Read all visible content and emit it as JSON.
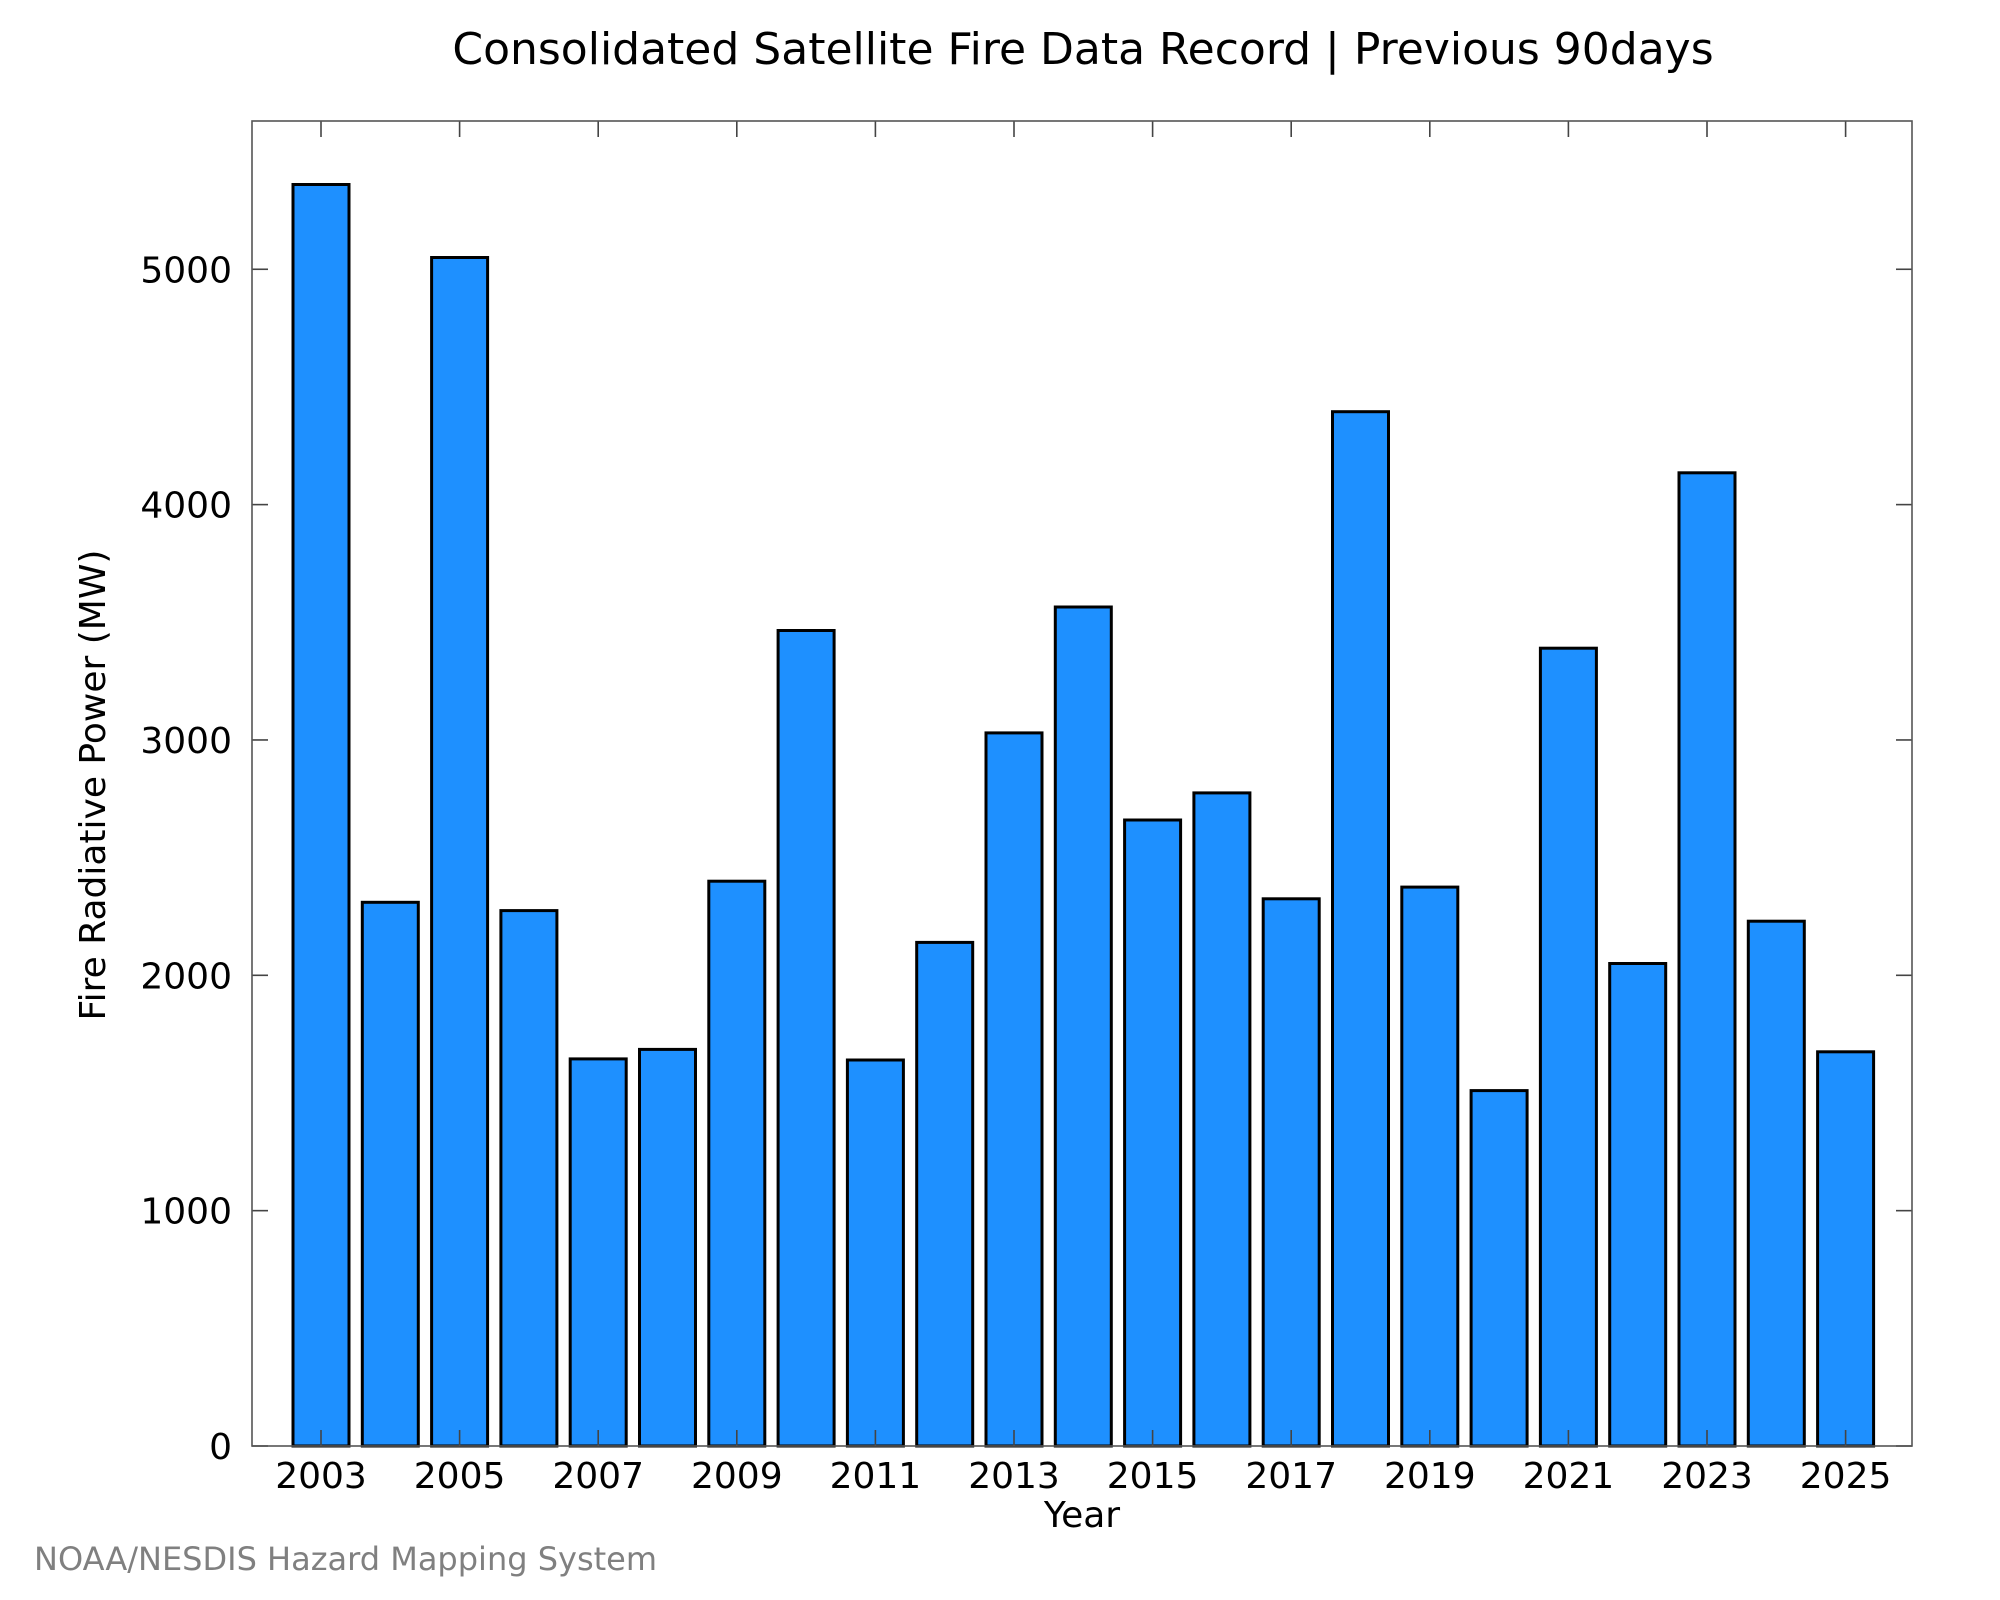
{
  "chart_data": {
    "type": "bar",
    "title": "Consolidated Satellite Fire Data Record | Previous 90days",
    "xlabel": "Year",
    "ylabel": "Fire Radiative Power (MW)",
    "ylim": [
      0,
      5630
    ],
    "yticks": [
      0,
      1000,
      2000,
      3000,
      4000,
      5000
    ],
    "xtick_labels": [
      "2003",
      "2005",
      "2007",
      "2009",
      "2011",
      "2013",
      "2015",
      "2017",
      "2019",
      "2021",
      "2023",
      "2025"
    ],
    "categories": [
      "2003",
      "2004",
      "2005",
      "2006",
      "2007",
      "2008",
      "2009",
      "2010",
      "2011",
      "2012",
      "2013",
      "2014",
      "2015",
      "2016",
      "2017",
      "2018",
      "2019",
      "2020",
      "2021",
      "2022",
      "2023",
      "2024",
      "2025"
    ],
    "values": [
      5360,
      2310,
      5050,
      2275,
      1645,
      1685,
      2400,
      3465,
      1640,
      2140,
      3030,
      3565,
      2660,
      2775,
      2325,
      4395,
      2375,
      1510,
      3390,
      2050,
      4135,
      2230,
      1675
    ],
    "bar_color": "#1e90ff",
    "grid": false,
    "legend": "none"
  },
  "footer": {
    "credit": "NOAA/NESDIS Hazard Mapping System"
  }
}
